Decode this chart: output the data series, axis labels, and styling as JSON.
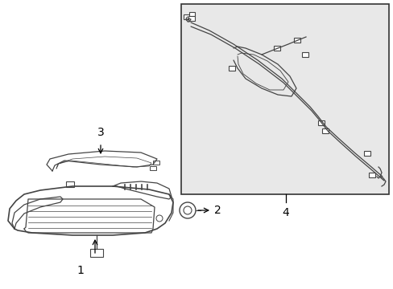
{
  "background_color": "#ffffff",
  "box_bg_color": "#e8e8e8",
  "line_color": "#444444",
  "text_color": "#000000",
  "figsize": [
    4.89,
    3.6
  ],
  "dpi": 100
}
